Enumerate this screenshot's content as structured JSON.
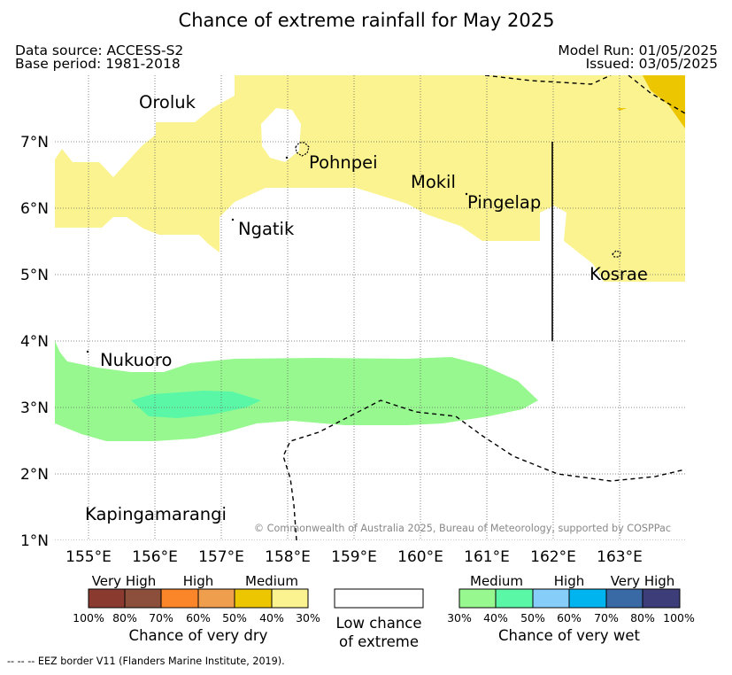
{
  "title": "Chance of extreme rainfall for May 2025",
  "header": {
    "data_source": "Data source: ACCESS-S2",
    "base_period": "Base period: 1981-2018",
    "model_run": "Model Run: 01/05/2025",
    "issued": "Issued: 03/05/2025"
  },
  "map": {
    "lat_labels": [
      "7°N",
      "6°N",
      "5°N",
      "4°N",
      "3°N",
      "2°N",
      "1°N"
    ],
    "lon_labels": [
      "155°E",
      "156°E",
      "157°E",
      "158°E",
      "159°E",
      "160°E",
      "161°E",
      "162°E",
      "163°E"
    ],
    "places": [
      "Oroluk",
      "Pohnpei",
      "Mokil",
      "Pingelap",
      "Ngatik",
      "Kosrae",
      "Nukuoro",
      "Kapingamarangi"
    ],
    "copyright": "© Commonwealth of Australia 2025, Bureau of Meteorology, supported by COSPPac",
    "colors": {
      "dry_30_40": "#fbf38f",
      "dry_40_50": "#ecc600",
      "wet_30_40": "#98f890",
      "wet_40_50": "#5af8a6"
    }
  },
  "legend": {
    "dry": {
      "categories": [
        "Very High",
        "High",
        "Medium"
      ],
      "ticks": [
        "100%",
        "80%",
        "70%",
        "60%",
        "50%",
        "40%",
        "30%"
      ],
      "colors": [
        "#8b3a2f",
        "#8c4f3c",
        "#fb8529",
        "#ef9e4e",
        "#ecc600",
        "#fbf38f"
      ],
      "title": "Chance of very dry"
    },
    "low": {
      "line1": "Low chance",
      "line2": "of extreme"
    },
    "wet": {
      "categories": [
        "Medium",
        "High",
        "Very High"
      ],
      "ticks": [
        "30%",
        "40%",
        "50%",
        "60%",
        "70%",
        "80%",
        "100%"
      ],
      "colors": [
        "#98f890",
        "#5af8a6",
        "#87cdfa",
        "#00b4ef",
        "#3a6aa6",
        "#3d3d7a"
      ],
      "title": "Chance of very wet"
    }
  },
  "footnote": "-- -- -- EEZ border V11 (Flanders Marine Institute, 2019)."
}
